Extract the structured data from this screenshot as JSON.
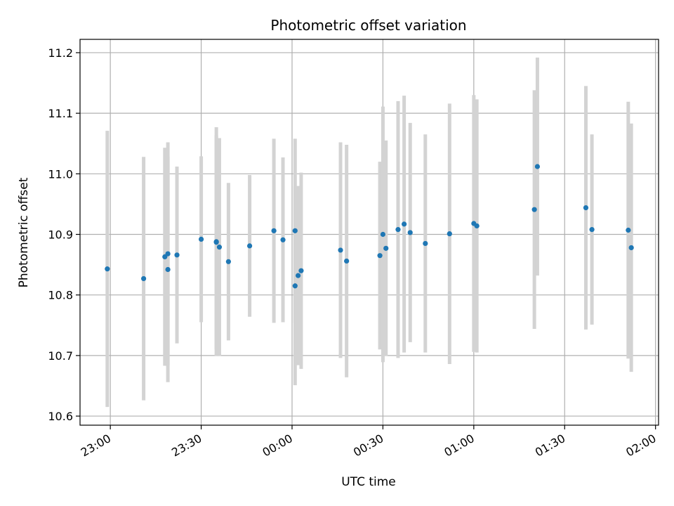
{
  "chart_data": {
    "type": "scatter",
    "title": "Photometric offset variation",
    "xlabel": "UTC time",
    "ylabel": "Photometric offset",
    "grid": true,
    "xlim": [
      "22:50",
      "02:01"
    ],
    "ylim": [
      10.585,
      11.222
    ],
    "x_ticks": [
      "23:00",
      "23:30",
      "00:00",
      "00:30",
      "01:00",
      "01:30",
      "02:00"
    ],
    "y_ticks": [
      "10.6",
      "10.7",
      "10.8",
      "10.9",
      "11.0",
      "11.1",
      "11.2"
    ],
    "colors": {
      "points": "#1f77b4",
      "errorbars": "#d3d3d3",
      "grid": "#b0b0b0"
    },
    "points": [
      {
        "x": "22:59",
        "y": 10.843,
        "err": 0.228
      },
      {
        "x": "23:11",
        "y": 10.827,
        "err": 0.201
      },
      {
        "x": "23:18",
        "y": 10.863,
        "err": 0.18
      },
      {
        "x": "23:19",
        "y": 10.868,
        "err": 0.184
      },
      {
        "x": "23:19",
        "y": 10.842,
        "err": 0.186
      },
      {
        "x": "23:22",
        "y": 10.866,
        "err": 0.146
      },
      {
        "x": "23:30",
        "y": 10.892,
        "err": 0.137
      },
      {
        "x": "23:35",
        "y": 10.887,
        "err": 0.177
      },
      {
        "x": "23:35",
        "y": 10.888,
        "err": 0.189
      },
      {
        "x": "23:36",
        "y": 10.879,
        "err": 0.18
      },
      {
        "x": "23:39",
        "y": 10.855,
        "err": 0.13
      },
      {
        "x": "23:46",
        "y": 10.881,
        "err": 0.117
      },
      {
        "x": "23:54",
        "y": 10.906,
        "err": 0.152
      },
      {
        "x": "23:57",
        "y": 10.891,
        "err": 0.136
      },
      {
        "x": "00:01",
        "y": 10.906,
        "err": 0.152
      },
      {
        "x": "00:01",
        "y": 10.815,
        "err": 0.164
      },
      {
        "x": "00:02",
        "y": 10.832,
        "err": 0.148
      },
      {
        "x": "00:03",
        "y": 10.84,
        "err": 0.162
      },
      {
        "x": "00:16",
        "y": 10.874,
        "err": 0.178
      },
      {
        "x": "00:18",
        "y": 10.856,
        "err": 0.192
      },
      {
        "x": "00:29",
        "y": 10.865,
        "err": 0.155
      },
      {
        "x": "00:30",
        "y": 10.9,
        "err": 0.211
      },
      {
        "x": "00:31",
        "y": 10.877,
        "err": 0.178
      },
      {
        "x": "00:35",
        "y": 10.908,
        "err": 0.212
      },
      {
        "x": "00:37",
        "y": 10.917,
        "err": 0.212
      },
      {
        "x": "00:39",
        "y": 10.903,
        "err": 0.181
      },
      {
        "x": "00:44",
        "y": 10.885,
        "err": 0.18
      },
      {
        "x": "00:52",
        "y": 10.901,
        "err": 0.215
      },
      {
        "x": "01:00",
        "y": 10.918,
        "err": 0.212
      },
      {
        "x": "01:01",
        "y": 10.914,
        "err": 0.209
      },
      {
        "x": "01:20",
        "y": 10.941,
        "err": 0.197
      },
      {
        "x": "01:21",
        "y": 11.012,
        "err": 0.18
      },
      {
        "x": "01:37",
        "y": 10.944,
        "err": 0.201
      },
      {
        "x": "01:39",
        "y": 10.908,
        "err": 0.157
      },
      {
        "x": "01:51",
        "y": 10.907,
        "err": 0.212
      },
      {
        "x": "01:52",
        "y": 10.878,
        "err": 0.205
      }
    ]
  }
}
